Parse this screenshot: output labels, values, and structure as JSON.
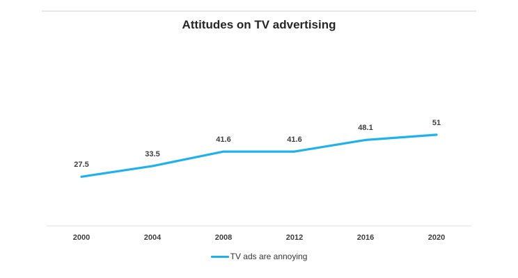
{
  "title": "Attitudes on TV advertising",
  "legend": {
    "label": "TV ads are annoying"
  },
  "colors": {
    "accent": "#1fb1ee",
    "axis_line": "#efefef",
    "top_rule": "#e8e8e8",
    "label_text": "#3d3d3d",
    "title_text": "#262626"
  },
  "chart_data": {
    "type": "line",
    "title": "Attitudes on TV advertising",
    "categories": [
      "2000",
      "2004",
      "2008",
      "2012",
      "2016",
      "2020"
    ],
    "series": [
      {
        "name": "TV ads are annoying",
        "values": [
          27.5,
          33.5,
          41.6,
          41.6,
          48.1,
          51
        ],
        "color": "#1fb1ee"
      }
    ],
    "data_labels": [
      "27.5",
      "33.5",
      "41.6",
      "41.6",
      "48.1",
      "51"
    ],
    "xlabel": "",
    "ylabel": "",
    "ylim": [
      0,
      55
    ],
    "grid": false,
    "legend_position": "bottom"
  }
}
